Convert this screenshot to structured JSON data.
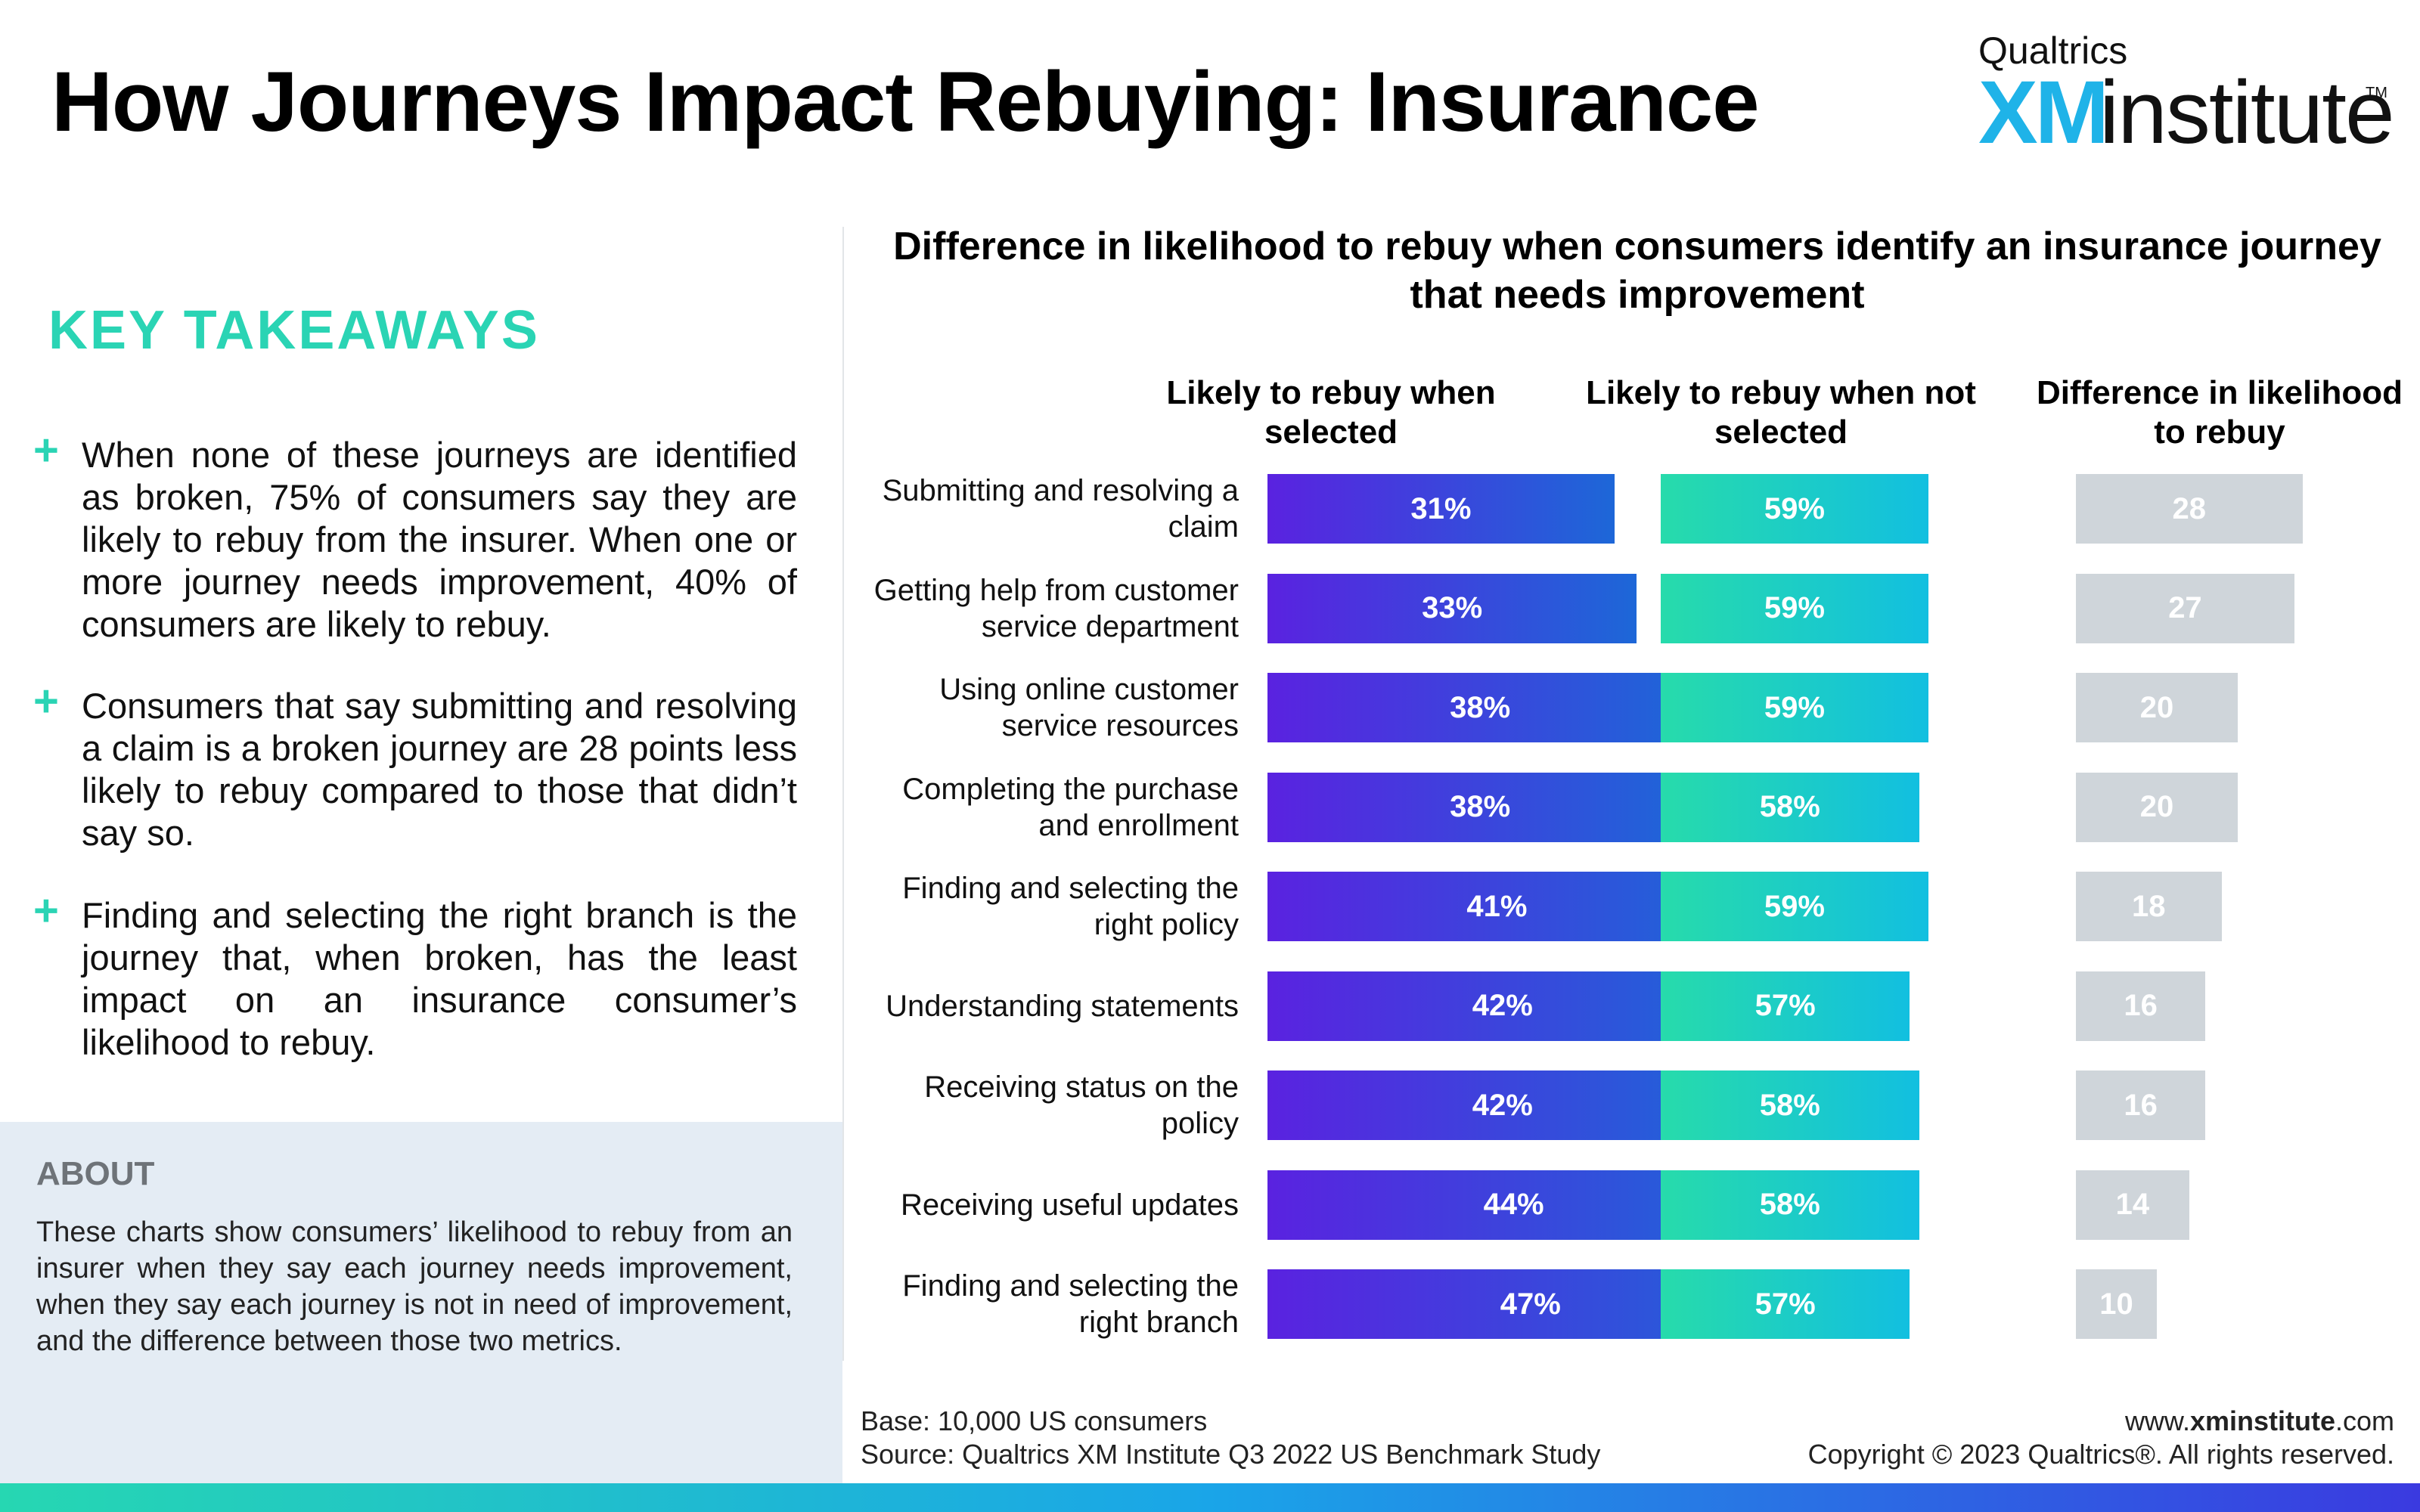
{
  "title": "How Journeys Impact Rebuying: Insurance",
  "logo": {
    "brand": "Qualtrics",
    "xm": "XM",
    "institute": "institute",
    "tm": "TM"
  },
  "takeaways": {
    "heading": "KEY TAKEAWAYS",
    "items": [
      "When none of these journeys are identified as broken, 75% of consumers say they are likely to rebuy from the insurer. When one or more journey needs improvement, 40% of consumers are likely to rebuy.",
      "Consumers that say submitting and resolving a claim is a broken journey are 28 points less likely to rebuy compared to those that didn’t say so.",
      "Finding and selecting the right branch is the journey that, when broken, has the least impact on an insurance consumer’s likelihood to rebuy."
    ]
  },
  "about": {
    "title": "ABOUT",
    "body": "These charts show consumers’ likelihood to rebuy from an insurer when they say each journey needs improvement, when they say each journey is not in need of improvement, and the difference between those two metrics."
  },
  "chart_data": {
    "type": "bar",
    "title": "Difference in likelihood to rebuy when consumers identify an insurance journey that needs improvement",
    "categories": [
      "Submitting and resolving a claim",
      "Getting help from customer service department",
      "Using online customer service resources",
      "Completing the purchase and enrollment",
      "Finding and selecting the right policy",
      "Understanding statements",
      "Receiving status on the policy",
      "Receiving useful updates",
      "Finding and selecting the right branch"
    ],
    "series": [
      {
        "name": "Likely to rebuy when selected",
        "values": [
          31,
          33,
          38,
          38,
          41,
          42,
          42,
          44,
          47
        ],
        "labels": [
          "31%",
          "33%",
          "38%",
          "38%",
          "41%",
          "42%",
          "42%",
          "44%",
          "47%"
        ],
        "color": "#5a22e0"
      },
      {
        "name": "Likely to rebuy when not selected",
        "values": [
          59,
          59,
          59,
          58,
          59,
          57,
          58,
          58,
          57
        ],
        "labels": [
          "59%",
          "59%",
          "59%",
          "58%",
          "59%",
          "57%",
          "58%",
          "58%",
          "57%"
        ],
        "color": "#27dbab"
      },
      {
        "name": "Difference in likelihood to rebuy",
        "values": [
          28,
          27,
          20,
          20,
          18,
          16,
          16,
          14,
          10
        ],
        "labels": [
          "28",
          "27",
          "20",
          "20",
          "18",
          "16",
          "16",
          "14",
          "10"
        ],
        "color": "#cfd5da"
      }
    ],
    "legend": "column headers",
    "grid": false
  },
  "footer": {
    "base": "Base: 10,000 US consumers",
    "source": "Source: Qualtrics XM Institute Q3 2022 US Benchmark Study",
    "url_prefix": "www.",
    "url_bold": "xminstitute",
    "url_suffix": ".com",
    "copyright": "Copyright © 2023 Qualtrics®. All rights reserved."
  }
}
